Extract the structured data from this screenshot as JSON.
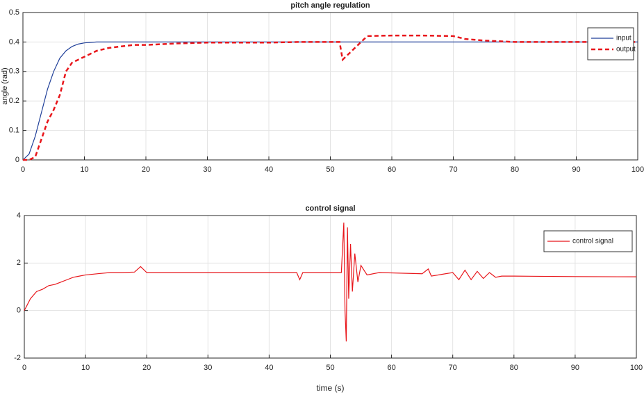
{
  "chart_data": [
    {
      "type": "line",
      "title": "pitch angle regulation",
      "ylabel": "angle (rad)",
      "x": [
        0,
        1,
        2,
        3,
        4,
        5,
        6,
        7,
        8,
        9,
        10,
        12,
        14,
        16,
        18,
        20,
        25,
        30,
        40,
        45,
        50,
        51.5,
        52,
        52.5,
        53,
        54,
        55,
        56,
        60,
        65,
        70,
        72,
        75,
        80,
        90,
        100
      ],
      "series": [
        {
          "name": "input",
          "color": "#1f3f99",
          "linestyle": "solid",
          "values": [
            0,
            0.02,
            0.08,
            0.16,
            0.24,
            0.3,
            0.345,
            0.37,
            0.385,
            0.393,
            0.397,
            0.4,
            0.4,
            0.4,
            0.4,
            0.4,
            0.4,
            0.4,
            0.4,
            0.4,
            0.4,
            0.4,
            0.4,
            0.4,
            0.4,
            0.4,
            0.4,
            0.4,
            0.4,
            0.4,
            0.4,
            0.4,
            0.4,
            0.4,
            0.4,
            0.4
          ]
        },
        {
          "name": "output",
          "color": "#e8161b",
          "linestyle": "dashed",
          "values": [
            0,
            0,
            0.01,
            0.07,
            0.13,
            0.17,
            0.22,
            0.3,
            0.33,
            0.34,
            0.35,
            0.37,
            0.38,
            0.385,
            0.39,
            0.39,
            0.395,
            0.398,
            0.398,
            0.4,
            0.4,
            0.4,
            0.34,
            0.35,
            0.36,
            0.38,
            0.4,
            0.42,
            0.422,
            0.422,
            0.42,
            0.41,
            0.405,
            0.4,
            0.4,
            0.4
          ]
        }
      ],
      "xlim": [
        0,
        100
      ],
      "ylim": [
        0,
        0.5
      ],
      "xticks": [
        0,
        10,
        20,
        30,
        40,
        50,
        60,
        70,
        80,
        90,
        100
      ],
      "yticks": [
        0,
        0.1,
        0.2,
        0.3,
        0.4,
        0.5
      ],
      "grid": true,
      "legend": "upper right"
    },
    {
      "type": "line",
      "title": "control signal",
      "xlabel": "time (s)",
      "x": [
        0,
        1,
        2,
        3,
        4,
        5,
        6,
        7,
        8,
        9,
        10,
        12,
        14,
        16,
        18,
        19,
        20,
        22,
        30,
        40,
        44.5,
        45,
        45.5,
        50,
        51.8,
        52.2,
        52.4,
        52.6,
        52.8,
        53,
        53.3,
        53.6,
        54,
        54.5,
        55,
        56,
        58,
        65,
        66,
        66.5,
        70,
        71,
        72,
        73,
        74,
        75,
        76,
        77,
        78,
        80,
        90,
        100
      ],
      "series": [
        {
          "name": "control signal",
          "color": "#e8161b",
          "linestyle": "solid",
          "values": [
            0,
            0.5,
            0.8,
            0.9,
            1.05,
            1.1,
            1.2,
            1.3,
            1.4,
            1.45,
            1.5,
            1.55,
            1.6,
            1.6,
            1.62,
            1.85,
            1.6,
            1.6,
            1.6,
            1.6,
            1.6,
            1.3,
            1.6,
            1.6,
            1.6,
            3.7,
            0,
            -1.3,
            3.5,
            0.5,
            2.8,
            0.8,
            2.4,
            1.2,
            1.9,
            1.5,
            1.6,
            1.55,
            1.75,
            1.45,
            1.6,
            1.3,
            1.7,
            1.3,
            1.65,
            1.35,
            1.6,
            1.4,
            1.45,
            1.45,
            1.43,
            1.42
          ]
        }
      ],
      "xlim": [
        0,
        100
      ],
      "ylim": [
        -2,
        4
      ],
      "xticks": [
        0,
        10,
        20,
        30,
        40,
        50,
        60,
        70,
        80,
        90,
        100
      ],
      "yticks": [
        -2,
        0,
        2,
        4
      ],
      "grid": true,
      "legend": "upper right"
    }
  ]
}
